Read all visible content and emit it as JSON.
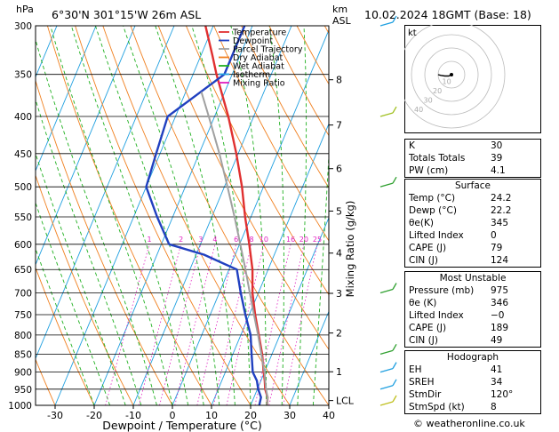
{
  "header": {
    "location": "6°30'N 301°15'W 26m ASL",
    "datetime": "10.02.2024 18GMT (Base: 18)",
    "pressure_unit": "hPa",
    "height_unit_km": "km",
    "height_unit_asl": "ASL"
  },
  "chart_data": {
    "type": "line",
    "xlabel": "Dewpoint / Temperature (°C)",
    "ylabel_right": "Mixing Ratio (g/kg)",
    "xlim": [
      -35,
      40
    ],
    "ylim": [
      1000,
      300
    ],
    "x_ticks": [
      -30,
      -20,
      -10,
      0,
      10,
      20,
      30,
      40
    ],
    "pressure_levels": [
      300,
      350,
      400,
      450,
      500,
      550,
      600,
      650,
      700,
      750,
      800,
      850,
      900,
      950,
      1000
    ],
    "km_ticks": [
      {
        "label": "8",
        "p": 356
      },
      {
        "label": "7",
        "p": 411
      },
      {
        "label": "6",
        "p": 472
      },
      {
        "label": "5",
        "p": 540
      },
      {
        "label": "4",
        "p": 617
      },
      {
        "label": "3",
        "p": 701
      },
      {
        "label": "2",
        "p": 795
      },
      {
        "label": "1",
        "p": 899
      },
      {
        "label": "LCL",
        "p": 985
      }
    ],
    "mixing_ratio_labels": [
      "1",
      "2",
      "3",
      "4",
      "6",
      "8",
      "10",
      "16",
      "20",
      "25"
    ],
    "mixing_ratio_values": [
      1,
      2,
      3,
      4,
      6,
      8,
      10,
      16,
      20,
      25
    ],
    "legend": [
      {
        "name": "Temperature",
        "color": "#e03030"
      },
      {
        "name": "Dewpoint",
        "color": "#2040c0"
      },
      {
        "name": "Parcel Trajectory",
        "color": "#a0a0a0"
      },
      {
        "name": "Dry Adiabat",
        "color": "#f08020"
      },
      {
        "name": "Wet Adiabat",
        "color": "#20b020"
      },
      {
        "name": "Isotherm",
        "color": "#20a0e0"
      },
      {
        "name": "Mixing Ratio",
        "color": "#e020c0"
      }
    ],
    "legend_position": "top-right",
    "series": [
      {
        "name": "Temperature",
        "color": "#e03030",
        "points": [
          [
            1000,
            24.2
          ],
          [
            975,
            23.5
          ],
          [
            950,
            22.0
          ],
          [
            925,
            21.0
          ],
          [
            900,
            19.8
          ],
          [
            850,
            17.5
          ],
          [
            800,
            14.6
          ],
          [
            750,
            11.5
          ],
          [
            700,
            8.5
          ],
          [
            650,
            6.0
          ],
          [
            600,
            2.5
          ],
          [
            550,
            -1.5
          ],
          [
            500,
            -5.5
          ],
          [
            450,
            -10.5
          ],
          [
            400,
            -16.5
          ],
          [
            350,
            -24
          ],
          [
            330,
            -27
          ],
          [
            300,
            -32
          ]
        ]
      },
      {
        "name": "Dewpoint",
        "color": "#2040c0",
        "points": [
          [
            1000,
            22.2
          ],
          [
            975,
            21.8
          ],
          [
            950,
            20.2
          ],
          [
            925,
            19.0
          ],
          [
            900,
            17.0
          ],
          [
            850,
            14.8
          ],
          [
            800,
            12.5
          ],
          [
            750,
            9.0
          ],
          [
            700,
            5.5
          ],
          [
            650,
            2.0
          ],
          [
            620,
            -8
          ],
          [
            600,
            -18
          ],
          [
            550,
            -24
          ],
          [
            500,
            -30
          ],
          [
            450,
            -31
          ],
          [
            400,
            -32
          ],
          [
            350,
            -22
          ],
          [
            300,
            -22
          ]
        ]
      },
      {
        "name": "Parcel Trajectory",
        "color": "#a0a0a0",
        "points": [
          [
            1000,
            24.2
          ],
          [
            975,
            23.5
          ],
          [
            950,
            22.2
          ],
          [
            900,
            20.0
          ],
          [
            850,
            17.3
          ],
          [
            800,
            14.4
          ],
          [
            750,
            11.2
          ],
          [
            700,
            7.8
          ],
          [
            650,
            4.2
          ],
          [
            600,
            0.2
          ],
          [
            550,
            -4.2
          ],
          [
            500,
            -9.2
          ],
          [
            450,
            -14.8
          ],
          [
            400,
            -21.5
          ],
          [
            370,
            -26
          ]
        ]
      }
    ]
  },
  "hodograph": {
    "label": "kt",
    "ring_labels": [
      "10",
      "20",
      "30",
      "40"
    ],
    "points": [
      [
        0,
        0
      ],
      [
        -2,
        -1
      ],
      [
        -5,
        -1
      ],
      [
        -8,
        -0.5
      ],
      [
        -10,
        0
      ]
    ]
  },
  "wind_barbs": [
    {
      "p": 300,
      "color": "#20a0e0"
    },
    {
      "p": 400,
      "color": "#a0c020"
    },
    {
      "p": 500,
      "color": "#30a030"
    },
    {
      "p": 700,
      "color": "#30a030"
    },
    {
      "p": 850,
      "color": "#30a030"
    },
    {
      "p": 900,
      "color": "#20a0e0"
    },
    {
      "p": 950,
      "color": "#20a0e0"
    },
    {
      "p": 1000,
      "color": "#c0c020"
    }
  ],
  "indices": {
    "basic": [
      {
        "label": "K",
        "value": "30"
      },
      {
        "label": "Totals Totals",
        "value": "39"
      },
      {
        "label": "PW (cm)",
        "value": "4.1"
      }
    ],
    "surface_title": "Surface",
    "surface": [
      {
        "label": "Temp (°C)",
        "value": "24.2"
      },
      {
        "label": "Dewp (°C)",
        "value": "22.2"
      },
      {
        "label": "θe(K)",
        "value": "345"
      },
      {
        "label": "Lifted Index",
        "value": "0"
      },
      {
        "label": "CAPE (J)",
        "value": "79"
      },
      {
        "label": "CIN (J)",
        "value": "124"
      }
    ],
    "mu_title": "Most Unstable",
    "most_unstable": [
      {
        "label": "Pressure (mb)",
        "value": "975"
      },
      {
        "label": "θe (K)",
        "value": "346"
      },
      {
        "label": "Lifted Index",
        "value": "−0"
      },
      {
        "label": "CAPE (J)",
        "value": "189"
      },
      {
        "label": "CIN (J)",
        "value": "49"
      }
    ],
    "hodo_title": "Hodograph",
    "hodograph": [
      {
        "label": "EH",
        "value": "41"
      },
      {
        "label": "SREH",
        "value": "34"
      },
      {
        "label": "StmDir",
        "value": "120°"
      },
      {
        "label": "StmSpd (kt)",
        "value": "8"
      }
    ]
  },
  "footer": "© weatheronline.co.uk"
}
